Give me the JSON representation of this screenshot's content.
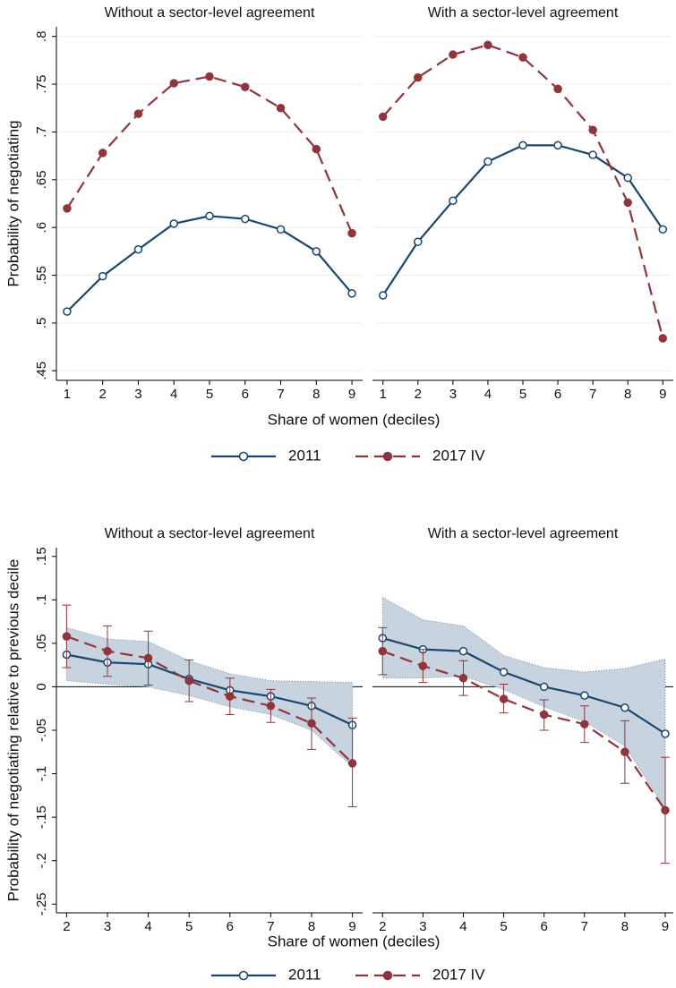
{
  "chart_data": [
    {
      "type": "line",
      "title": "Without a sector-level agreement",
      "y_label": "Probability of negotiating",
      "x_label": "Share of women (deciles)",
      "x": [
        1,
        2,
        3,
        4,
        5,
        6,
        7,
        8,
        9
      ],
      "xlim": [
        0.7,
        9.3
      ],
      "xticks": [
        1,
        2,
        3,
        4,
        5,
        6,
        7,
        8,
        9
      ],
      "ylim": [
        0.44,
        0.81
      ],
      "yticks": [
        {
          "value": 0.45,
          "label": ".45"
        },
        {
          "value": 0.5,
          "label": ".5"
        },
        {
          "value": 0.55,
          "label": ".55"
        },
        {
          "value": 0.6,
          "label": ".6"
        },
        {
          "value": 0.65,
          "label": ".65"
        },
        {
          "value": 0.7,
          "label": ".7"
        },
        {
          "value": 0.75,
          "label": ".75"
        },
        {
          "value": 0.8,
          "label": ".8"
        }
      ],
      "grid": true,
      "series": [
        {
          "name": "2011",
          "color": "#1a476f",
          "marker": "hollow",
          "dashed": false,
          "values": [
            0.512,
            0.549,
            0.577,
            0.604,
            0.612,
            0.609,
            0.598,
            0.575,
            0.531
          ]
        },
        {
          "name": "2017 IV",
          "color": "#90353b",
          "marker": "filled",
          "dashed": true,
          "values": [
            0.62,
            0.678,
            0.719,
            0.751,
            0.758,
            0.747,
            0.725,
            0.682,
            0.594
          ]
        }
      ]
    },
    {
      "type": "line",
      "title": "With a sector-level agreement",
      "x": [
        1,
        2,
        3,
        4,
        5,
        6,
        7,
        8,
        9
      ],
      "xlim": [
        0.7,
        9.3
      ],
      "xticks": [
        1,
        2,
        3,
        4,
        5,
        6,
        7,
        8,
        9
      ],
      "ylim": [
        0.44,
        0.81
      ],
      "grid": true,
      "series": [
        {
          "name": "2011",
          "color": "#1a476f",
          "marker": "hollow",
          "dashed": false,
          "values": [
            0.529,
            0.585,
            0.628,
            0.669,
            0.686,
            0.686,
            0.676,
            0.652,
            0.598
          ]
        },
        {
          "name": "2017 IV",
          "color": "#90353b",
          "marker": "filled",
          "dashed": true,
          "values": [
            0.716,
            0.757,
            0.781,
            0.791,
            0.778,
            0.745,
            0.702,
            0.626,
            0.484
          ]
        }
      ]
    },
    {
      "type": "line",
      "title": "Without a sector-level agreement",
      "y_label": "Probability of negotiating relative to previous decile",
      "x_label": "Share of women (deciles)",
      "x": [
        2,
        3,
        4,
        5,
        6,
        7,
        8,
        9
      ],
      "xlim": [
        1.75,
        9.25
      ],
      "xticks": [
        2,
        3,
        4,
        5,
        6,
        7,
        8,
        9
      ],
      "ylim": [
        -0.26,
        0.16
      ],
      "yticks": [
        {
          "value": -0.25,
          "label": "-.25"
        },
        {
          "value": -0.2,
          "label": "-.2"
        },
        {
          "value": -0.15,
          "label": "-.15"
        },
        {
          "value": -0.1,
          "label": "-.1"
        },
        {
          "value": -0.05,
          "label": "-.05"
        },
        0,
        {
          "value": 0.05,
          "label": ".05"
        },
        {
          "value": 0.1,
          "label": ".1"
        },
        {
          "value": 0.15,
          "label": ".15"
        }
      ],
      "grid": false,
      "hline": 0,
      "series": [
        {
          "name": "2011",
          "color": "#1a476f",
          "marker": "hollow",
          "dashed": false,
          "ci_style": "band",
          "values": [
            0.037,
            0.028,
            0.026,
            0.009,
            -0.004,
            -0.011,
            -0.022,
            -0.044
          ],
          "ci_low": [
            0.007,
            0.003,
            0.0,
            -0.01,
            -0.023,
            -0.032,
            -0.05,
            -0.092
          ],
          "ci_high": [
            0.068,
            0.055,
            0.052,
            0.03,
            0.015,
            0.007,
            0.006,
            0.005
          ]
        },
        {
          "name": "2017 IV",
          "color": "#90353b",
          "marker": "filled",
          "dashed": true,
          "ci_style": "bars",
          "values": [
            0.058,
            0.041,
            0.033,
            0.007,
            -0.011,
            -0.022,
            -0.042,
            -0.088
          ],
          "ci_low": [
            0.022,
            0.012,
            0.002,
            -0.017,
            -0.032,
            -0.041,
            -0.072,
            -0.138
          ],
          "ci_high": [
            0.094,
            0.07,
            0.064,
            0.031,
            0.01,
            -0.003,
            -0.013,
            -0.036
          ]
        }
      ]
    },
    {
      "type": "line",
      "title": "With a sector-level agreement",
      "x": [
        2,
        3,
        4,
        5,
        6,
        7,
        8,
        9
      ],
      "xlim": [
        1.75,
        9.2
      ],
      "xticks": [
        2,
        3,
        4,
        5,
        6,
        7,
        8,
        9
      ],
      "ylim": [
        -0.26,
        0.16
      ],
      "grid": false,
      "hline": 0,
      "series": [
        {
          "name": "2011",
          "color": "#1a476f",
          "marker": "hollow",
          "dashed": false,
          "ci_style": "band",
          "values": [
            0.056,
            0.043,
            0.041,
            0.017,
            0.0,
            -0.01,
            -0.024,
            -0.054
          ],
          "ci_low": [
            0.01,
            0.01,
            0.012,
            -0.003,
            -0.023,
            -0.04,
            -0.068,
            -0.14
          ],
          "ci_high": [
            0.103,
            0.077,
            0.07,
            0.036,
            0.022,
            0.017,
            0.021,
            0.032
          ]
        },
        {
          "name": "2017 IV",
          "color": "#90353b",
          "marker": "filled",
          "dashed": true,
          "ci_style": "bars",
          "values": [
            0.041,
            0.024,
            0.01,
            -0.014,
            -0.032,
            -0.043,
            -0.075,
            -0.142
          ],
          "ci_low": [
            0.014,
            0.005,
            -0.01,
            -0.03,
            -0.05,
            -0.064,
            -0.111,
            -0.203
          ],
          "ci_high": [
            0.068,
            0.043,
            0.03,
            0.003,
            -0.015,
            -0.022,
            -0.039,
            -0.081
          ]
        }
      ]
    }
  ]
}
